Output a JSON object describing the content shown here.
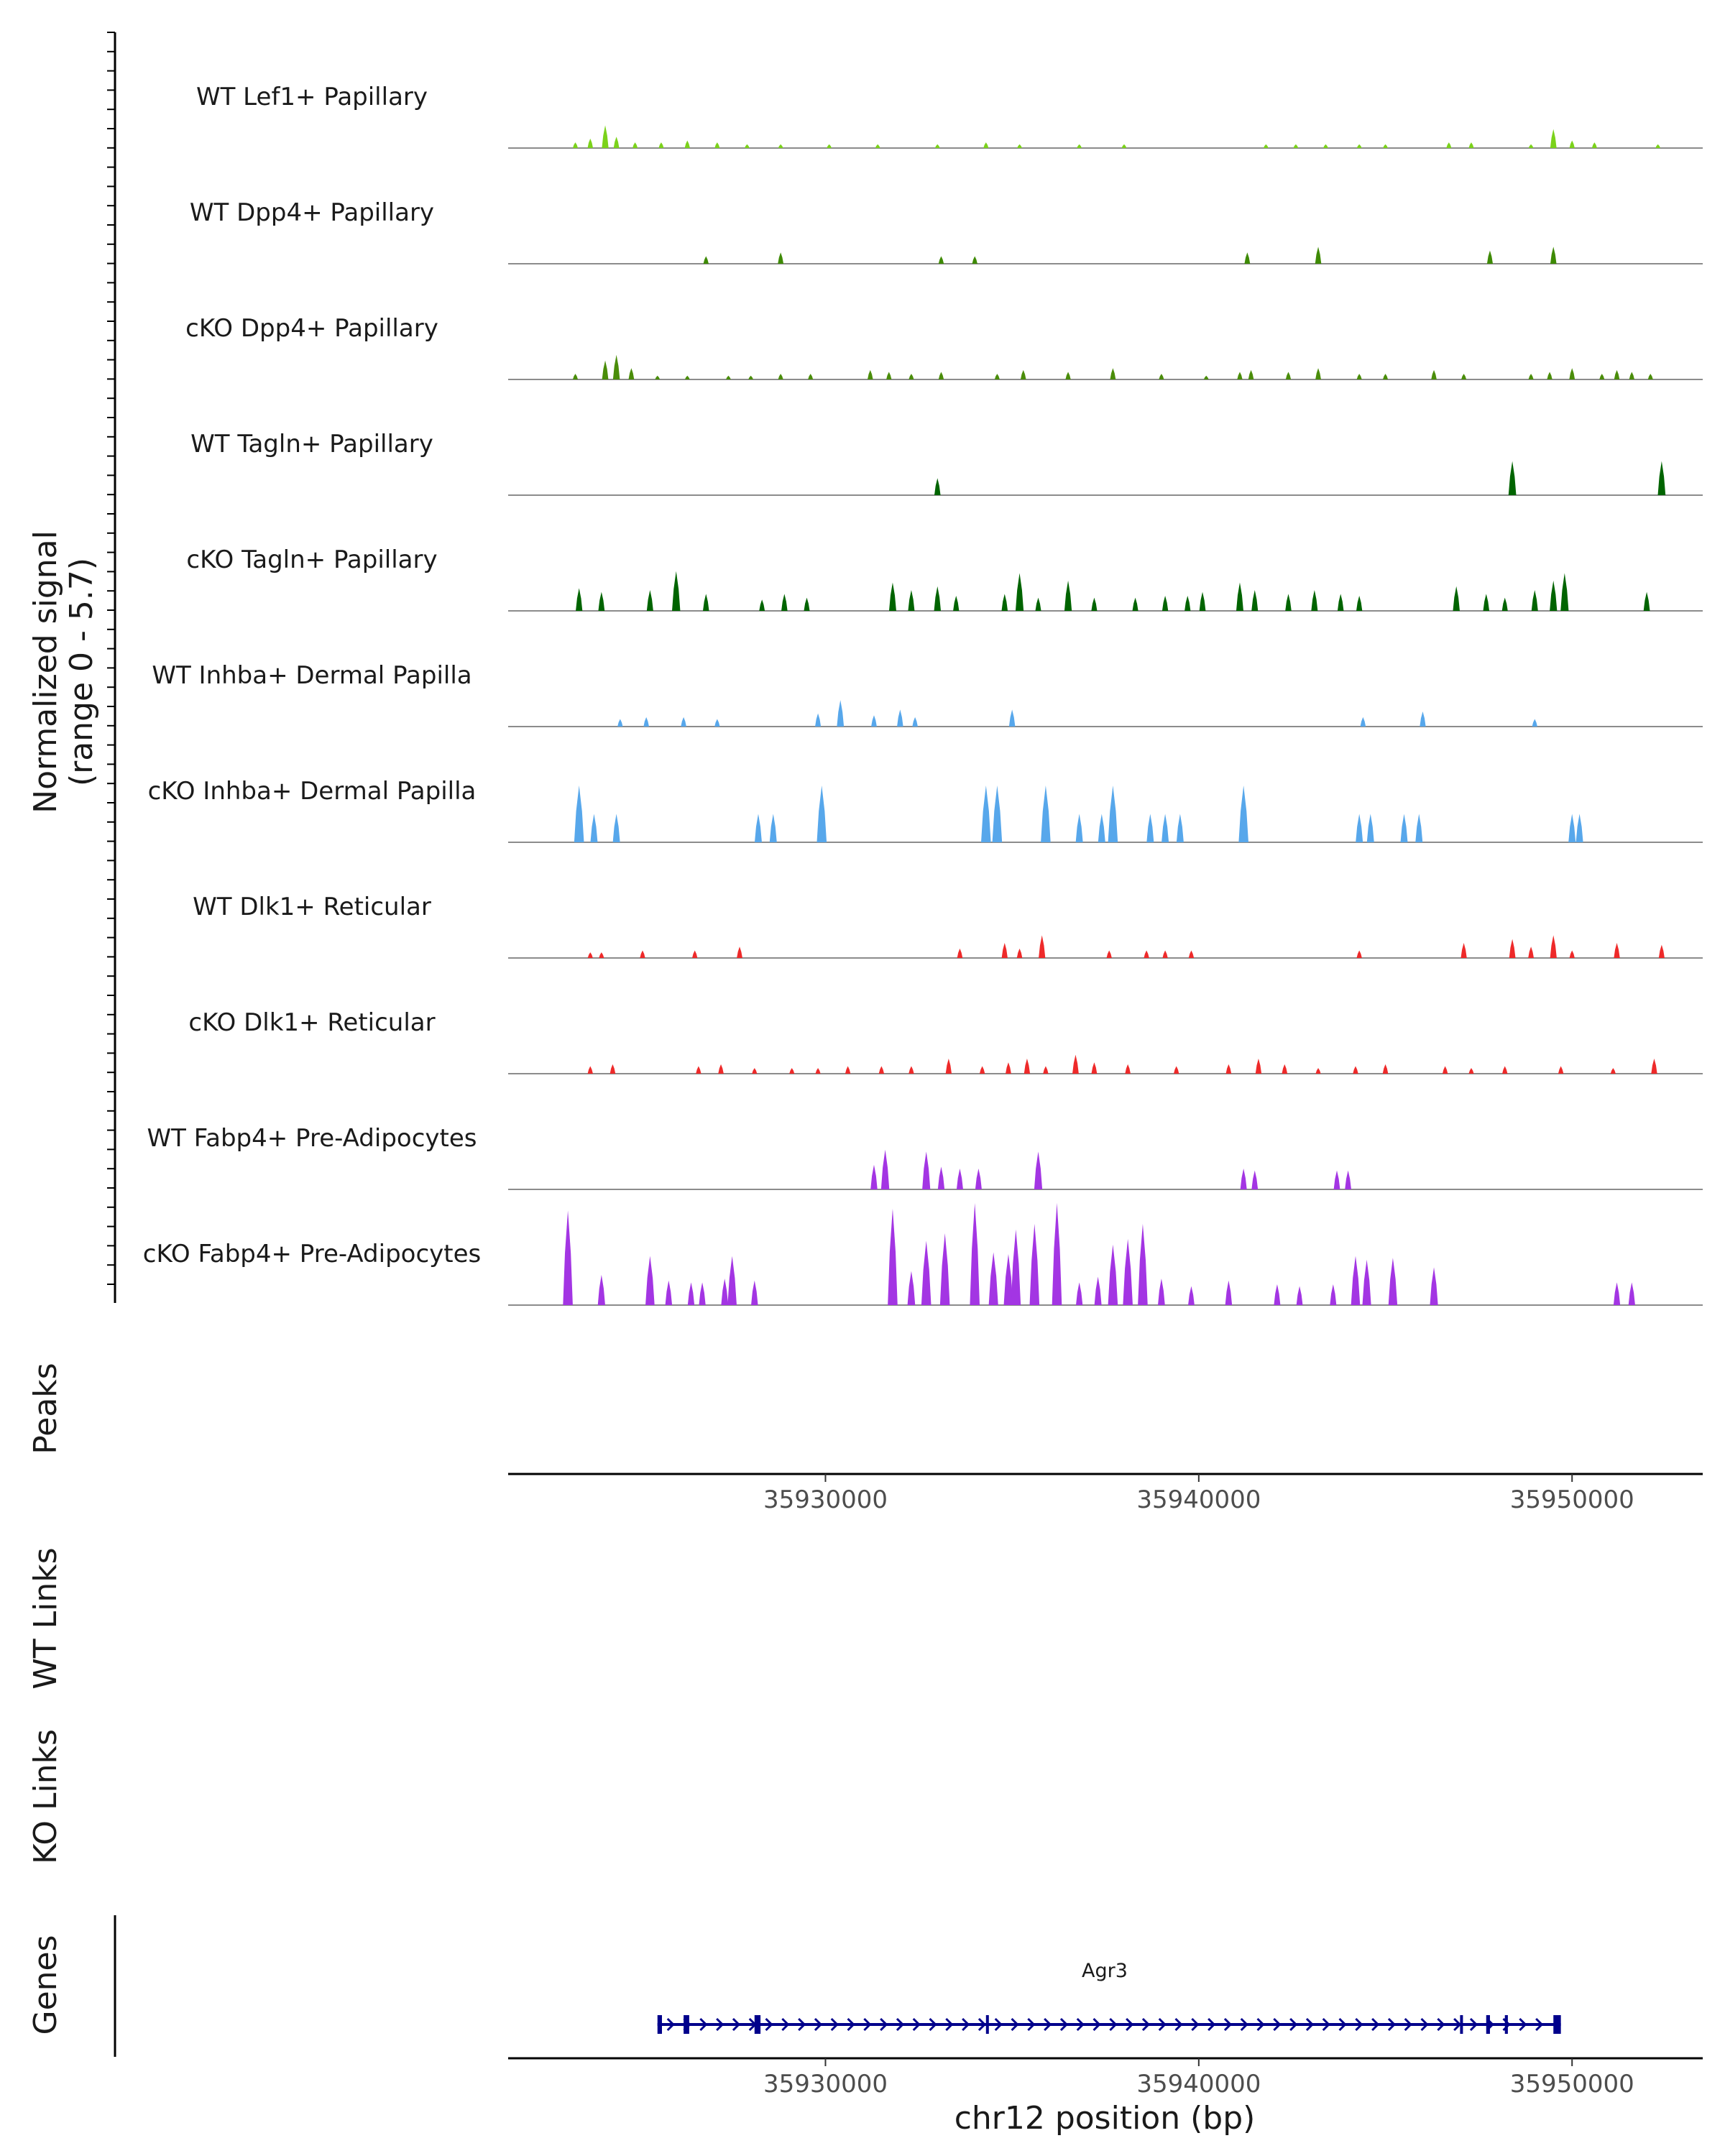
{
  "chart_data": {
    "type": "genome-coverage-tracks",
    "region": {
      "chrom": "chr12",
      "start": 35921500,
      "end": 35953500
    },
    "ylabel_line1": "Normalized signal",
    "ylabel_line2": "(range 0 - 5.7)",
    "yrange": [
      0,
      5.7
    ],
    "tracks": [
      {
        "name": "WT Lef1+ Papillary",
        "color": "#7bd21b",
        "peaks": [
          [
            35923300,
            0.3
          ],
          [
            35923700,
            0.5
          ],
          [
            35924100,
            1.2
          ],
          [
            35924400,
            0.6
          ],
          [
            35924900,
            0.3
          ],
          [
            35925600,
            0.3
          ],
          [
            35926300,
            0.4
          ],
          [
            35927100,
            0.3
          ],
          [
            35927900,
            0.2
          ],
          [
            35928800,
            0.2
          ],
          [
            35930100,
            0.2
          ],
          [
            35931400,
            0.2
          ],
          [
            35933000,
            0.2
          ],
          [
            35934300,
            0.3
          ],
          [
            35935200,
            0.2
          ],
          [
            35936800,
            0.2
          ],
          [
            35938000,
            0.2
          ],
          [
            35941800,
            0.2
          ],
          [
            35942600,
            0.2
          ],
          [
            35943400,
            0.2
          ],
          [
            35944300,
            0.2
          ],
          [
            35945000,
            0.2
          ],
          [
            35946700,
            0.3
          ],
          [
            35947300,
            0.3
          ],
          [
            35948900,
            0.2
          ],
          [
            35949500,
            1.0
          ],
          [
            35950000,
            0.4
          ],
          [
            35950600,
            0.3
          ],
          [
            35952300,
            0.2
          ]
        ]
      },
      {
        "name": "WT Dpp4+ Papillary",
        "color": "#3e8a05",
        "peaks": [
          [
            35926800,
            0.4
          ],
          [
            35928800,
            0.6
          ],
          [
            35933100,
            0.4
          ],
          [
            35934000,
            0.4
          ],
          [
            35941300,
            0.6
          ],
          [
            35943200,
            0.9
          ],
          [
            35947800,
            0.7
          ],
          [
            35949500,
            0.9
          ]
        ]
      },
      {
        "name": "cKO Dpp4+ Papillary",
        "color": "#4a8d0a",
        "peaks": [
          [
            35923300,
            0.3
          ],
          [
            35924100,
            1.0
          ],
          [
            35924400,
            1.3
          ],
          [
            35924800,
            0.6
          ],
          [
            35925500,
            0.2
          ],
          [
            35926300,
            0.2
          ],
          [
            35927400,
            0.2
          ],
          [
            35928000,
            0.2
          ],
          [
            35928800,
            0.3
          ],
          [
            35929600,
            0.3
          ],
          [
            35931200,
            0.5
          ],
          [
            35931700,
            0.4
          ],
          [
            35932300,
            0.3
          ],
          [
            35933100,
            0.4
          ],
          [
            35934600,
            0.3
          ],
          [
            35935300,
            0.5
          ],
          [
            35936500,
            0.4
          ],
          [
            35937700,
            0.6
          ],
          [
            35939000,
            0.3
          ],
          [
            35940200,
            0.2
          ],
          [
            35941100,
            0.4
          ],
          [
            35941400,
            0.5
          ],
          [
            35942400,
            0.4
          ],
          [
            35943200,
            0.6
          ],
          [
            35944300,
            0.3
          ],
          [
            35945000,
            0.3
          ],
          [
            35946300,
            0.5
          ],
          [
            35947100,
            0.3
          ],
          [
            35948900,
            0.3
          ],
          [
            35949400,
            0.4
          ],
          [
            35950000,
            0.6
          ],
          [
            35950800,
            0.3
          ],
          [
            35951200,
            0.5
          ],
          [
            35951600,
            0.4
          ],
          [
            35952100,
            0.3
          ]
        ]
      },
      {
        "name": "WT Tagln+ Papillary",
        "color": "#006400",
        "peaks": [
          [
            35933000,
            0.9
          ],
          [
            35948400,
            1.8
          ],
          [
            35952400,
            1.8
          ]
        ]
      },
      {
        "name": "cKO Tagln+ Papillary",
        "color": "#006400",
        "peaks": [
          [
            35923400,
            1.2
          ],
          [
            35924000,
            1.0
          ],
          [
            35925300,
            1.1
          ],
          [
            35926000,
            2.1
          ],
          [
            35926800,
            0.9
          ],
          [
            35928300,
            0.6
          ],
          [
            35928900,
            0.9
          ],
          [
            35929500,
            0.7
          ],
          [
            35931800,
            1.5
          ],
          [
            35932300,
            1.1
          ],
          [
            35933000,
            1.3
          ],
          [
            35933500,
            0.8
          ],
          [
            35934800,
            0.9
          ],
          [
            35935200,
            2.0
          ],
          [
            35935700,
            0.7
          ],
          [
            35936500,
            1.6
          ],
          [
            35937200,
            0.7
          ],
          [
            35938300,
            0.7
          ],
          [
            35939100,
            0.8
          ],
          [
            35939700,
            0.8
          ],
          [
            35940100,
            1.0
          ],
          [
            35941100,
            1.5
          ],
          [
            35941500,
            1.1
          ],
          [
            35942400,
            0.9
          ],
          [
            35943100,
            1.1
          ],
          [
            35943800,
            0.9
          ],
          [
            35944300,
            0.8
          ],
          [
            35946900,
            1.3
          ],
          [
            35947700,
            0.9
          ],
          [
            35948200,
            0.7
          ],
          [
            35949000,
            1.1
          ],
          [
            35949500,
            1.6
          ],
          [
            35949800,
            2.0
          ],
          [
            35952000,
            1.0
          ]
        ]
      },
      {
        "name": "WT Inhba+ Dermal Papilla",
        "color": "#57a7eb",
        "peaks": [
          [
            35924500,
            0.4
          ],
          [
            35925200,
            0.5
          ],
          [
            35926200,
            0.5
          ],
          [
            35927100,
            0.4
          ],
          [
            35929800,
            0.7
          ],
          [
            35930400,
            1.4
          ],
          [
            35931300,
            0.6
          ],
          [
            35932000,
            0.9
          ],
          [
            35932400,
            0.5
          ],
          [
            35935000,
            0.9
          ],
          [
            35944400,
            0.5
          ],
          [
            35946000,
            0.8
          ],
          [
            35949000,
            0.4
          ]
        ]
      },
      {
        "name": "cKO Inhba+ Dermal Papilla",
        "color": "#57a7eb",
        "peaks": [
          [
            35923400,
            3.0
          ],
          [
            35923800,
            1.5
          ],
          [
            35924400,
            1.5
          ],
          [
            35928200,
            1.5
          ],
          [
            35928600,
            1.5
          ],
          [
            35929900,
            3.0
          ],
          [
            35934300,
            3.0
          ],
          [
            35934600,
            3.0
          ],
          [
            35935900,
            3.0
          ],
          [
            35936800,
            1.5
          ],
          [
            35937400,
            1.5
          ],
          [
            35937700,
            3.0
          ],
          [
            35938700,
            1.5
          ],
          [
            35939100,
            1.5
          ],
          [
            35939500,
            1.5
          ],
          [
            35941200,
            3.0
          ],
          [
            35944300,
            1.5
          ],
          [
            35944600,
            1.5
          ],
          [
            35945500,
            1.5
          ],
          [
            35945900,
            1.5
          ],
          [
            35950000,
            1.5
          ],
          [
            35950200,
            1.5
          ]
        ]
      },
      {
        "name": "WT Dlk1+ Reticular",
        "color": "#ee2a2a",
        "peaks": [
          [
            35923700,
            0.3
          ],
          [
            35924000,
            0.3
          ],
          [
            35925100,
            0.4
          ],
          [
            35926500,
            0.4
          ],
          [
            35927700,
            0.6
          ],
          [
            35933600,
            0.5
          ],
          [
            35934800,
            0.8
          ],
          [
            35935200,
            0.5
          ],
          [
            35935800,
            1.2
          ],
          [
            35937600,
            0.4
          ],
          [
            35938600,
            0.4
          ],
          [
            35939100,
            0.4
          ],
          [
            35939800,
            0.4
          ],
          [
            35944300,
            0.4
          ],
          [
            35947100,
            0.8
          ],
          [
            35948400,
            1.0
          ],
          [
            35948900,
            0.6
          ],
          [
            35949500,
            1.2
          ],
          [
            35950000,
            0.4
          ],
          [
            35951200,
            0.8
          ],
          [
            35952400,
            0.7
          ]
        ]
      },
      {
        "name": "cKO Dlk1+ Reticular",
        "color": "#ee2a2a",
        "peaks": [
          [
            35923700,
            0.4
          ],
          [
            35924300,
            0.5
          ],
          [
            35926600,
            0.4
          ],
          [
            35927200,
            0.5
          ],
          [
            35928100,
            0.3
          ],
          [
            35929100,
            0.3
          ],
          [
            35929800,
            0.3
          ],
          [
            35930600,
            0.4
          ],
          [
            35931500,
            0.4
          ],
          [
            35932300,
            0.4
          ],
          [
            35933300,
            0.8
          ],
          [
            35934200,
            0.4
          ],
          [
            35934900,
            0.6
          ],
          [
            35935400,
            0.8
          ],
          [
            35935900,
            0.4
          ],
          [
            35936700,
            1.0
          ],
          [
            35937200,
            0.6
          ],
          [
            35938100,
            0.5
          ],
          [
            35939400,
            0.4
          ],
          [
            35940800,
            0.5
          ],
          [
            35941600,
            0.8
          ],
          [
            35942300,
            0.5
          ],
          [
            35943200,
            0.3
          ],
          [
            35944200,
            0.4
          ],
          [
            35945000,
            0.5
          ],
          [
            35946600,
            0.4
          ],
          [
            35947300,
            0.3
          ],
          [
            35948200,
            0.4
          ],
          [
            35949700,
            0.4
          ],
          [
            35951100,
            0.3
          ],
          [
            35952200,
            0.8
          ]
        ]
      },
      {
        "name": "WT Fabp4+ Pre-Adipocytes",
        "color": "#a335e3",
        "peaks": [
          [
            35931300,
            1.3
          ],
          [
            35931600,
            2.1
          ],
          [
            35932700,
            2.0
          ],
          [
            35933100,
            1.2
          ],
          [
            35933600,
            1.1
          ],
          [
            35934100,
            1.1
          ],
          [
            35935700,
            2.0
          ],
          [
            35941200,
            1.1
          ],
          [
            35941500,
            1.0
          ],
          [
            35943700,
            1.0
          ],
          [
            35944000,
            1.0
          ]
        ]
      },
      {
        "name": "cKO Fabp4+ Pre-Adipocytes",
        "color": "#a335e3",
        "peaks": [
          [
            35923100,
            5.0
          ],
          [
            35924000,
            1.6
          ],
          [
            35925300,
            2.6
          ],
          [
            35925800,
            1.3
          ],
          [
            35926400,
            1.2
          ],
          [
            35926700,
            1.2
          ],
          [
            35927300,
            1.4
          ],
          [
            35927500,
            2.6
          ],
          [
            35928100,
            1.3
          ],
          [
            35931800,
            5.1
          ],
          [
            35932300,
            1.8
          ],
          [
            35932700,
            3.4
          ],
          [
            35933200,
            3.8
          ],
          [
            35934000,
            5.4
          ],
          [
            35934500,
            2.8
          ],
          [
            35934900,
            2.7
          ],
          [
            35935100,
            4.0
          ],
          [
            35935600,
            4.3
          ],
          [
            35936200,
            5.4
          ],
          [
            35936800,
            1.2
          ],
          [
            35937300,
            1.5
          ],
          [
            35937700,
            3.2
          ],
          [
            35938100,
            3.5
          ],
          [
            35938500,
            4.3
          ],
          [
            35939000,
            1.4
          ],
          [
            35939800,
            1.0
          ],
          [
            35940800,
            1.3
          ],
          [
            35942100,
            1.1
          ],
          [
            35942700,
            1.0
          ],
          [
            35943600,
            1.1
          ],
          [
            35944200,
            2.6
          ],
          [
            35944500,
            2.4
          ],
          [
            35945200,
            2.5
          ],
          [
            35946300,
            2.0
          ],
          [
            35951200,
            1.2
          ],
          [
            35951600,
            1.2
          ]
        ]
      }
    ],
    "peaks_track_label": "Peaks",
    "wt_links_label": "WT Links",
    "ko_links_label": "KO Links",
    "genes_track_label": "Genes",
    "gene": {
      "name": "Agr3",
      "strand": "+",
      "start": 35925500,
      "end": 35949700,
      "color": "#00008b",
      "exons": [
        [
          35925500,
          35925620
        ],
        [
          35926200,
          35926350
        ],
        [
          35928100,
          35928260
        ],
        [
          35934300,
          35934360
        ],
        [
          35947000,
          35947050
        ],
        [
          35947700,
          35947800
        ],
        [
          35948200,
          35948280
        ],
        [
          35949500,
          35949700
        ]
      ]
    },
    "xticks": [
      35930000,
      35940000,
      35950000
    ],
    "xtick_labels": [
      "35930000",
      "35940000",
      "35950000"
    ],
    "xlabel": "chr12 position (bp)"
  }
}
